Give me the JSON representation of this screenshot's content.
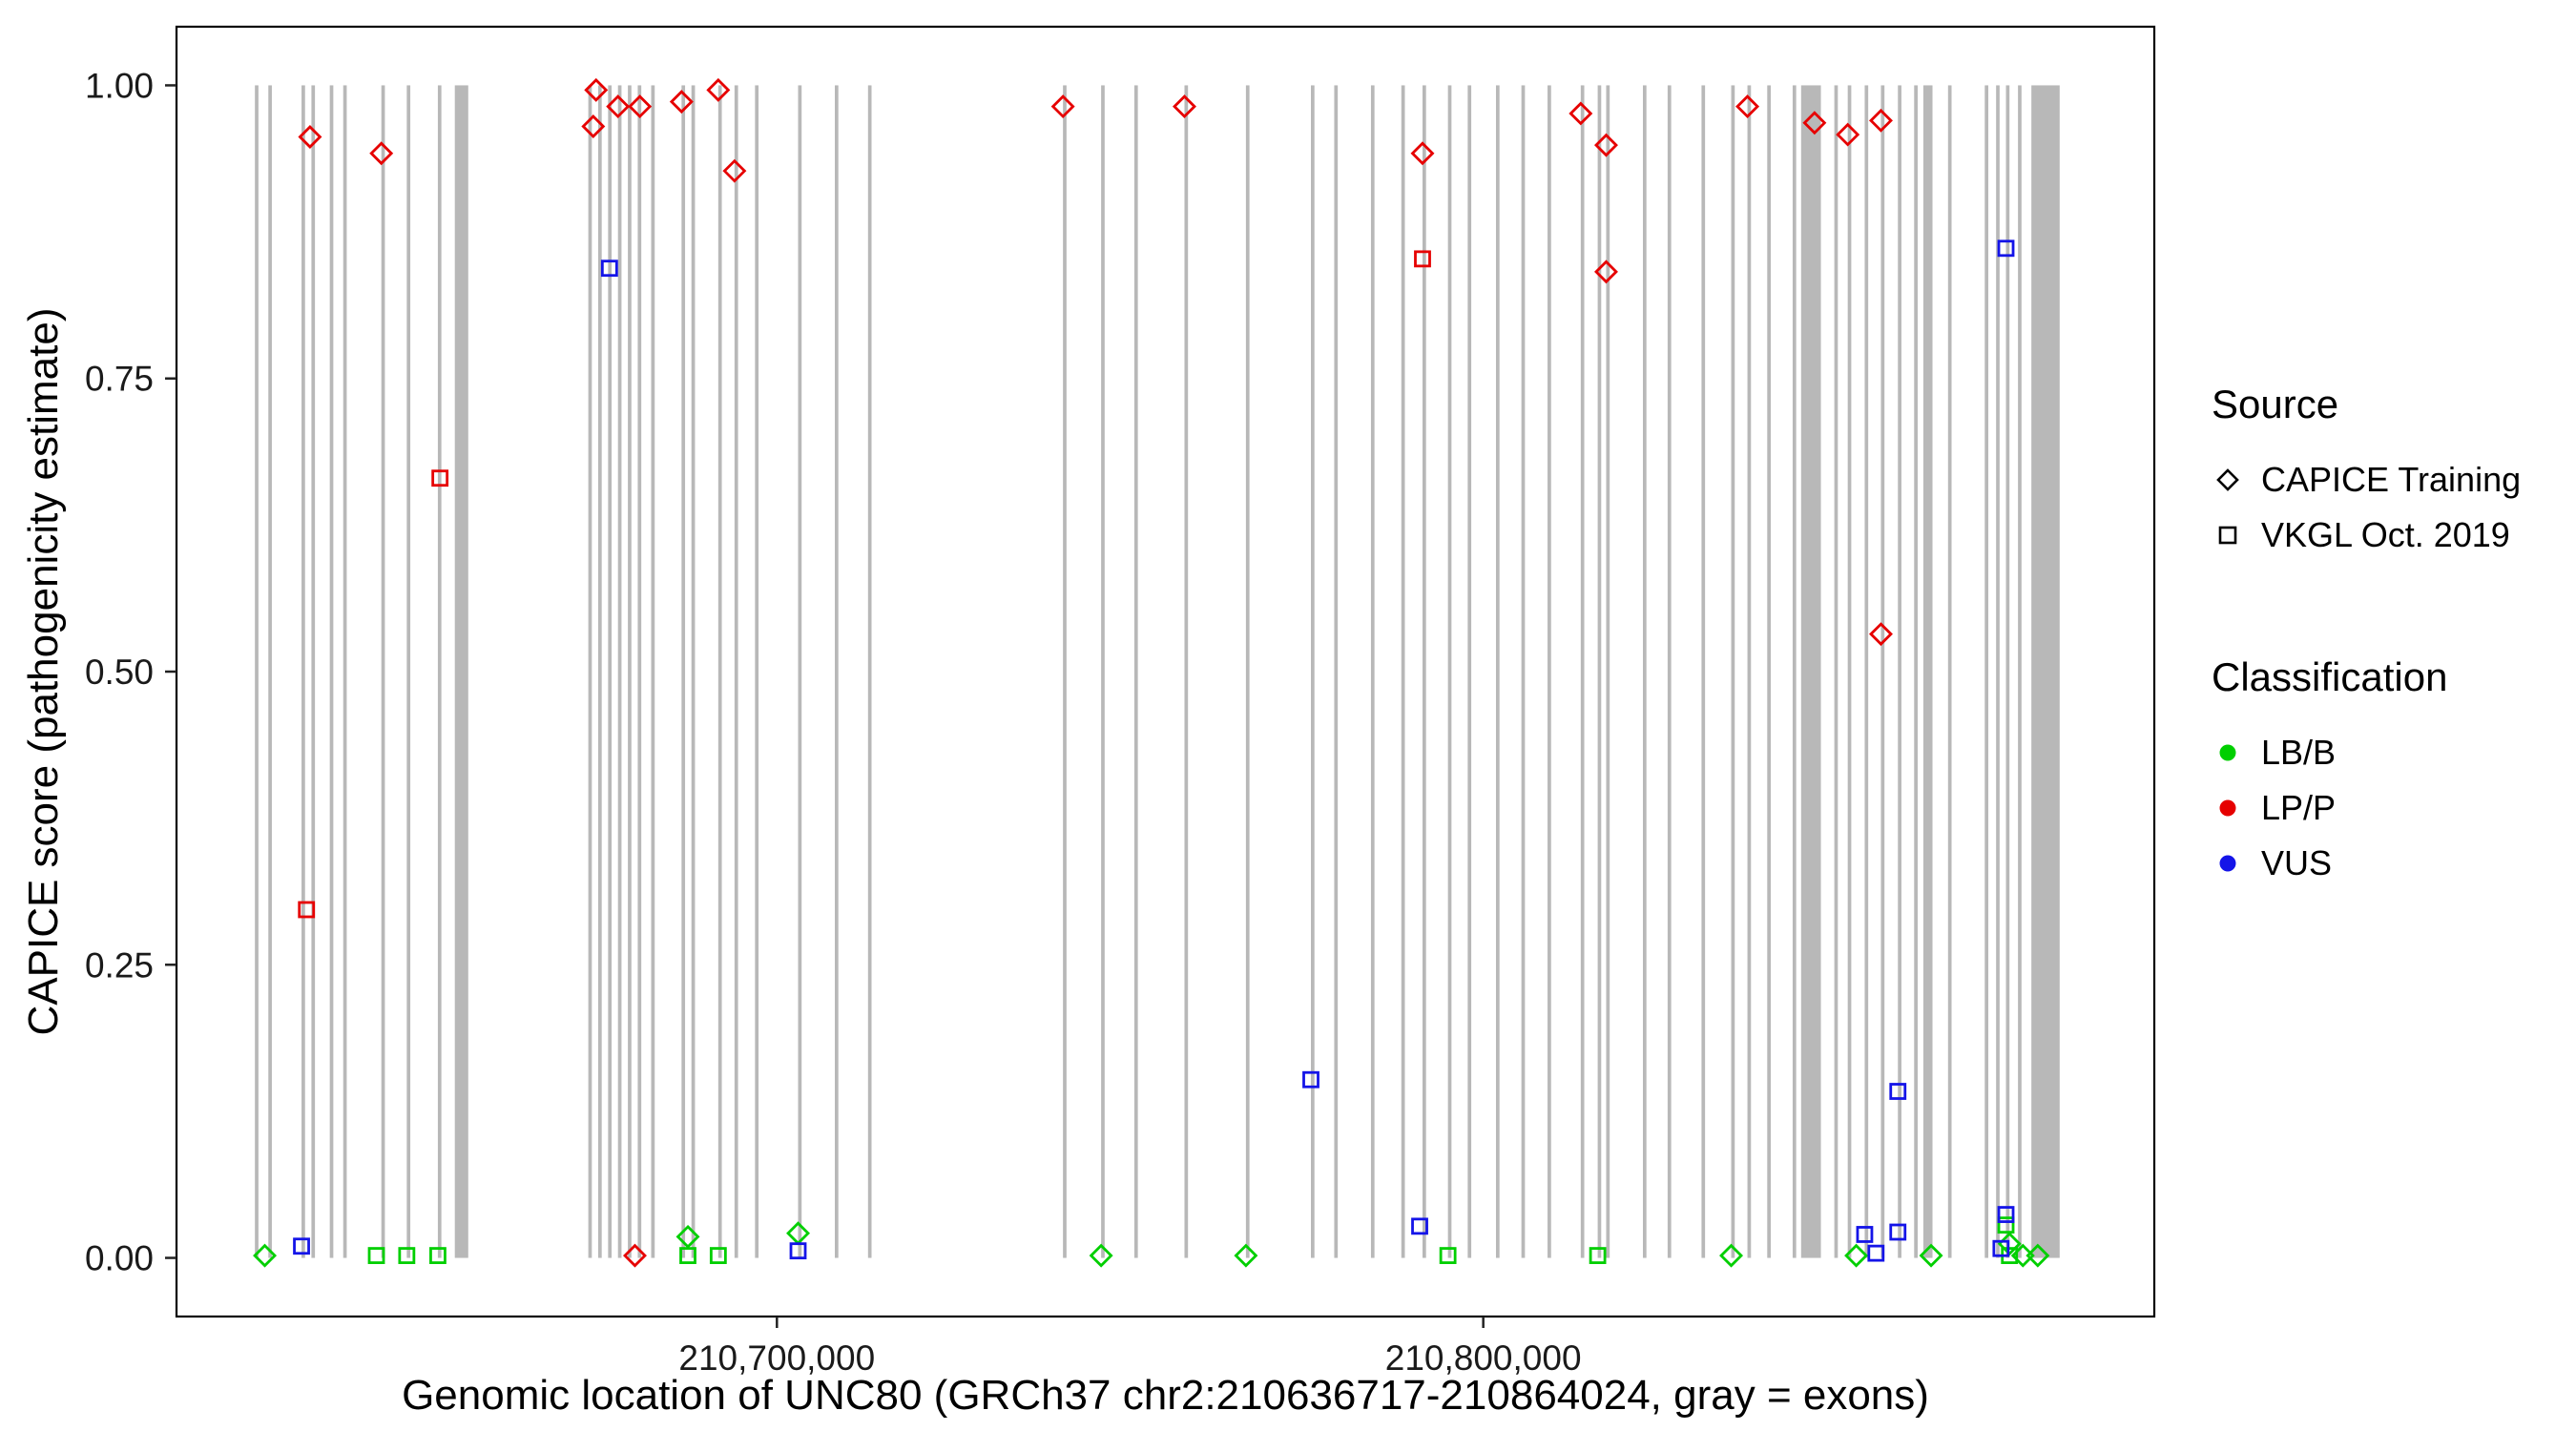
{
  "figure": {
    "x_axis_title": "Genomic location of UNC80 (GRCh37 chr2:210636717-210864024, gray = exons)",
    "y_axis_title": "CAPICE score (pathogenicity estimate)"
  },
  "legend": {
    "source": {
      "title": "Source",
      "items": [
        {
          "label": "CAPICE Training",
          "marker": "diamond"
        },
        {
          "label": "VKGL Oct. 2019",
          "marker": "square"
        }
      ]
    },
    "classification": {
      "title": "Classification",
      "items": [
        {
          "label": "LB/B",
          "color": "#00cf00"
        },
        {
          "label": "LP/P",
          "color": "#e60000"
        },
        {
          "label": "VUS",
          "color": "#1414e8"
        }
      ]
    }
  },
  "chart_data": {
    "type": "scatter",
    "title": "",
    "xlabel": "Genomic location of UNC80 (GRCh37 chr2:210636717-210864024, gray = exons)",
    "ylabel": "CAPICE score (pathogenicity estimate)",
    "xlim": [
      210615000,
      210895000
    ],
    "ylim": [
      0,
      1
    ],
    "grid": "off",
    "legend_position": "right",
    "x_ticks": [
      {
        "value": 210700000,
        "label": "210,700,000"
      },
      {
        "value": 210800000,
        "label": "210,800,000"
      }
    ],
    "y_ticks": [
      {
        "value": 0.0,
        "label": "0.00"
      },
      {
        "value": 0.25,
        "label": "0.25"
      },
      {
        "value": 0.5,
        "label": "0.50"
      },
      {
        "value": 0.75,
        "label": "0.75"
      },
      {
        "value": 1.0,
        "label": "1.00"
      }
    ],
    "colors": {
      "LB/B": "#00cf00",
      "LP/P": "#e60000",
      "VUS": "#1414e8"
    },
    "markers": {
      "CAPICE Training": "diamond",
      "VKGL Oct. 2019": "square"
    },
    "exon_color": "#b8b8b8",
    "exons": [
      [
        210626100,
        500
      ],
      [
        210628000,
        500
      ],
      [
        210632700,
        500
      ],
      [
        210634100,
        500
      ],
      [
        210636700,
        500
      ],
      [
        210638600,
        500
      ],
      [
        210644000,
        500
      ],
      [
        210647600,
        500
      ],
      [
        210652000,
        500
      ],
      [
        210654400,
        1900
      ],
      [
        210673300,
        500
      ],
      [
        210674700,
        500
      ],
      [
        210676100,
        500
      ],
      [
        210677500,
        500
      ],
      [
        210678900,
        500
      ],
      [
        210680300,
        500
      ],
      [
        210682200,
        500
      ],
      [
        210686500,
        500
      ],
      [
        210687900,
        500
      ],
      [
        210691700,
        500
      ],
      [
        210694000,
        500
      ],
      [
        210696900,
        500
      ],
      [
        210703000,
        500
      ],
      [
        210708200,
        500
      ],
      [
        210712900,
        500
      ],
      [
        210740500,
        500
      ],
      [
        210745900,
        500
      ],
      [
        210750600,
        500
      ],
      [
        210757700,
        500
      ],
      [
        210766400,
        500
      ],
      [
        210775600,
        500
      ],
      [
        210778900,
        500
      ],
      [
        210784100,
        500
      ],
      [
        210788400,
        500
      ],
      [
        210791400,
        500
      ],
      [
        210795000,
        500
      ],
      [
        210797800,
        500
      ],
      [
        210801800,
        500
      ],
      [
        210805400,
        500
      ],
      [
        210809100,
        500
      ],
      [
        210813800,
        500
      ],
      [
        210816200,
        500
      ],
      [
        210817400,
        500
      ],
      [
        210822600,
        500
      ],
      [
        210826100,
        500
      ],
      [
        210830900,
        500
      ],
      [
        210835100,
        500
      ],
      [
        210837400,
        500
      ],
      [
        210840200,
        500
      ],
      [
        210843800,
        500
      ],
      [
        210845000,
        2800
      ],
      [
        210849700,
        500
      ],
      [
        210851600,
        500
      ],
      [
        210854000,
        500
      ],
      [
        210856300,
        500
      ],
      [
        210858700,
        500
      ],
      [
        210861000,
        500
      ],
      [
        210862300,
        1300
      ],
      [
        210865800,
        500
      ],
      [
        210871000,
        500
      ],
      [
        210872600,
        500
      ],
      [
        210874000,
        500
      ],
      [
        210875700,
        500
      ],
      [
        210877600,
        4000
      ]
    ],
    "series": [
      {
        "source": "CAPICE Training",
        "classification": "LP/P",
        "points": [
          [
            210633900,
            0.956
          ],
          [
            210644000,
            0.942
          ],
          [
            210674000,
            0.965
          ],
          [
            210674400,
            0.996
          ],
          [
            210677500,
            0.982
          ],
          [
            210680600,
            0.982
          ],
          [
            210686500,
            0.986
          ],
          [
            210691700,
            0.996
          ],
          [
            210694000,
            0.927
          ],
          [
            210679900,
            0.002
          ],
          [
            210740500,
            0.982
          ],
          [
            210757700,
            0.982
          ],
          [
            210791400,
            0.942
          ],
          [
            210813800,
            0.976
          ],
          [
            210817400,
            0.949
          ],
          [
            210817400,
            0.841
          ],
          [
            210837400,
            0.982
          ],
          [
            210846900,
            0.968
          ],
          [
            210851600,
            0.958
          ],
          [
            210856300,
            0.97
          ],
          [
            210856300,
            0.532
          ]
        ]
      },
      {
        "source": "CAPICE Training",
        "classification": "LB/B",
        "points": [
          [
            210627500,
            0.002
          ],
          [
            210687400,
            0.018
          ],
          [
            210703000,
            0.021
          ],
          [
            210745900,
            0.002
          ],
          [
            210766400,
            0.002
          ],
          [
            210835100,
            0.002
          ],
          [
            210852800,
            0.002
          ],
          [
            210863400,
            0.002
          ],
          [
            210874500,
            0.012
          ],
          [
            210876400,
            0.002
          ],
          [
            210878500,
            0.002
          ]
        ]
      },
      {
        "source": "VKGL Oct. 2019",
        "classification": "LP/P",
        "points": [
          [
            210633400,
            0.297
          ],
          [
            210652300,
            0.665
          ],
          [
            210791400,
            0.852
          ]
        ]
      },
      {
        "source": "VKGL Oct. 2019",
        "classification": "LB/B",
        "points": [
          [
            210643300,
            0.002
          ],
          [
            210647600,
            0.002
          ],
          [
            210652000,
            0.002
          ],
          [
            210687400,
            0.002
          ],
          [
            210691700,
            0.002
          ],
          [
            210795000,
            0.002
          ],
          [
            210816200,
            0.002
          ],
          [
            210874000,
            0.028
          ],
          [
            210874500,
            0.002
          ]
        ]
      },
      {
        "source": "VKGL Oct. 2019",
        "classification": "VUS",
        "points": [
          [
            210632700,
            0.01
          ],
          [
            210676300,
            0.844
          ],
          [
            210703000,
            0.006
          ],
          [
            210775600,
            0.152
          ],
          [
            210791000,
            0.027
          ],
          [
            210854000,
            0.02
          ],
          [
            210855600,
            0.004
          ],
          [
            210858700,
            0.142
          ],
          [
            210858700,
            0.022
          ],
          [
            210874000,
            0.861
          ],
          [
            210874000,
            0.037
          ],
          [
            210873300,
            0.008
          ]
        ]
      }
    ]
  }
}
